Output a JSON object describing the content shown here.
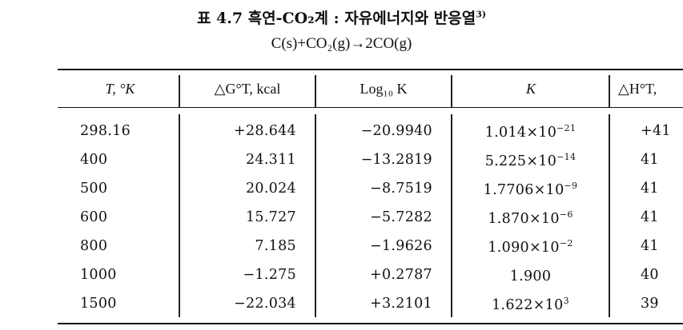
{
  "title": {
    "main": "표 4.7 흑연-CO₂계 : 자유에너지와 반응열",
    "footnote_ref": "3)",
    "equation": "C(s)+CO₂(g)→2CO(g)"
  },
  "table": {
    "headers": [
      "T, °K",
      "△G°T, kcal",
      "Log₁₀ K",
      "K",
      "△H°T,"
    ],
    "rows": [
      [
        "298.16",
        "+28.644",
        "−20.9940",
        "1.014×10",
        "−21",
        "+41"
      ],
      [
        "400",
        "24.311",
        "−13.2819",
        "5.225×10",
        "−14",
        "41"
      ],
      [
        "500",
        "20.024",
        "−8.7519",
        "1.7706×10",
        "−9",
        "41"
      ],
      [
        "600",
        "15.727",
        "−5.7282",
        "1.870×10",
        "−6",
        "41"
      ],
      [
        "800",
        "7.185",
        "−1.9626",
        "1.090×10",
        "−2",
        "41"
      ],
      [
        "1000",
        "−1.275",
        "+0.2787",
        "1.900",
        "",
        "40"
      ],
      [
        "1500",
        "−22.034",
        "+3.2101",
        "1.622×10",
        "3",
        "39"
      ]
    ]
  }
}
